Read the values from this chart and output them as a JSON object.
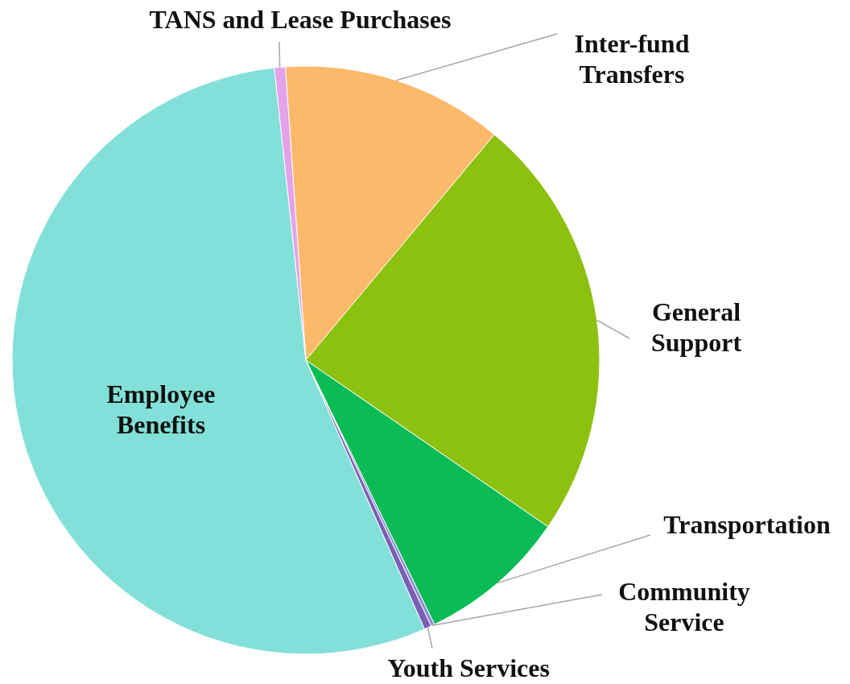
{
  "chart_data": {
    "type": "pie",
    "categories": [
      "Inter-fund Transfers",
      "General Support",
      "Transportation",
      "Community Service",
      "Youth Services",
      "Employee Benefits",
      "TANS and Lease Purchases"
    ],
    "values": [
      12.2,
      23.5,
      8.2,
      0.2,
      0.4,
      54.9,
      0.6
    ],
    "colors": [
      "#fdb96a",
      "#8cc10f",
      "#0bbb55",
      "#8a8fd0",
      "#7b5fb5",
      "#82e0d8",
      "#e3a2ea"
    ],
    "legend": false
  }
}
